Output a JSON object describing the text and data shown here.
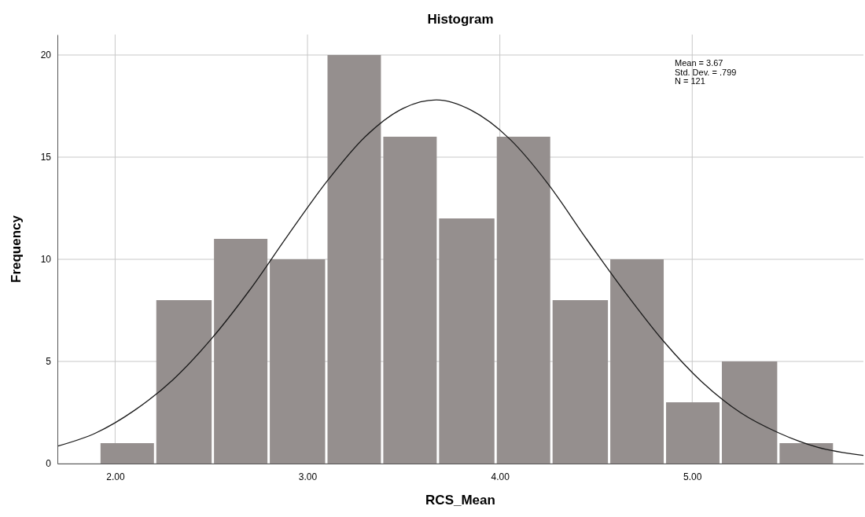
{
  "chart_data": {
    "type": "histogram",
    "title": "Histogram",
    "xlabel": "RCS_Mean",
    "ylabel": "Frequency",
    "xlim": [
      1.7,
      5.89
    ],
    "ylim": [
      0,
      21
    ],
    "xticks": [
      {
        "value": 2,
        "label": "2.00"
      },
      {
        "value": 3,
        "label": "3.00"
      },
      {
        "value": 4,
        "label": "4.00"
      },
      {
        "value": 5,
        "label": "5.00"
      }
    ],
    "yticks": [
      0,
      5,
      10,
      15,
      20
    ],
    "grid": true,
    "series": [
      {
        "type": "histogram",
        "color": "#958f8e",
        "bins": [
          1.92,
          2.21,
          2.51,
          2.8,
          3.1,
          3.39,
          3.68,
          3.98,
          4.27,
          4.57,
          4.86,
          5.15,
          5.45,
          5.74
        ],
        "values": [
          1,
          8,
          11,
          10,
          20,
          16,
          12,
          16,
          8,
          10,
          3,
          5,
          1
        ]
      },
      {
        "type": "line",
        "color": "#1a1a1a",
        "x": [
          1.7,
          1.9,
          2.1,
          2.3,
          2.5,
          2.7,
          2.9,
          3.1,
          3.3,
          3.5,
          3.67,
          3.85,
          4.05,
          4.25,
          4.45,
          4.65,
          4.85,
          5.05,
          5.25,
          5.45,
          5.65,
          5.89
        ],
        "values": [
          0.85,
          1.5,
          2.6,
          4.1,
          6.1,
          8.5,
          11.2,
          13.8,
          16,
          17.4,
          17.8,
          17.3,
          15.9,
          13.7,
          11,
          8.4,
          6,
          4,
          2.5,
          1.5,
          0.8,
          0.4
        ]
      }
    ],
    "annotations": [
      "Mean = 3.67",
      "Std. Dev. = .799",
      "N = 121"
    ]
  }
}
